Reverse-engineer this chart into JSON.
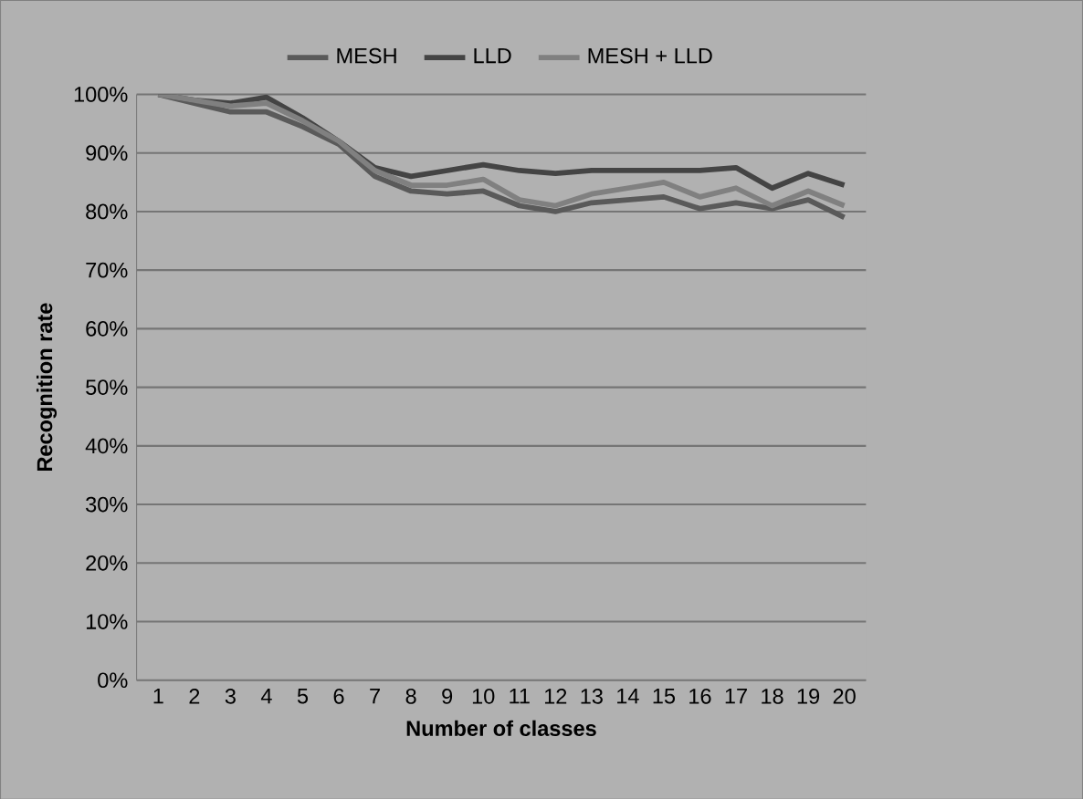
{
  "chart_data": {
    "type": "line",
    "xlabel": "Number of classes",
    "ylabel": "Recognition rate",
    "categories": [
      "1",
      "2",
      "3",
      "4",
      "5",
      "6",
      "7",
      "8",
      "9",
      "10",
      "11",
      "12",
      "13",
      "14",
      "15",
      "16",
      "17",
      "18",
      "19",
      "20"
    ],
    "series": [
      {
        "name": "MESH",
        "color": "#5a5a5a",
        "values": [
          100,
          98.5,
          97,
          97,
          94.5,
          91.5,
          86,
          83.5,
          83,
          83.5,
          81,
          80,
          81.5,
          82,
          82.5,
          80.5,
          81.5,
          80.5,
          82,
          79
        ]
      },
      {
        "name": "LLD",
        "color": "#444444",
        "values": [
          100,
          99,
          98.5,
          99.5,
          96,
          92,
          87.5,
          86,
          87,
          88,
          87,
          86.5,
          87,
          87,
          87,
          87,
          87.5,
          84,
          86.5,
          84.5
        ]
      },
      {
        "name": "MESH + LLD",
        "color": "#808080",
        "values": [
          100,
          99,
          98,
          98.5,
          95.5,
          92,
          87,
          84.5,
          84.5,
          85.5,
          82,
          81,
          83,
          84,
          85,
          82.5,
          84,
          81,
          83.5,
          81
        ]
      }
    ],
    "ylim": [
      0,
      100
    ],
    "yticks": [
      {
        "value": 0,
        "label": "0%"
      },
      {
        "value": 10,
        "label": "10%"
      },
      {
        "value": 20,
        "label": "20%"
      },
      {
        "value": 30,
        "label": "30%"
      },
      {
        "value": 40,
        "label": "40%"
      },
      {
        "value": 50,
        "label": "50%"
      },
      {
        "value": 60,
        "label": "60%"
      },
      {
        "value": 70,
        "label": "70%"
      },
      {
        "value": 80,
        "label": "80%"
      },
      {
        "value": 90,
        "label": "90%"
      },
      {
        "value": 100,
        "label": "100%"
      }
    ],
    "grid": "y",
    "legend": "top",
    "line_style": "solid",
    "marker": "none"
  }
}
